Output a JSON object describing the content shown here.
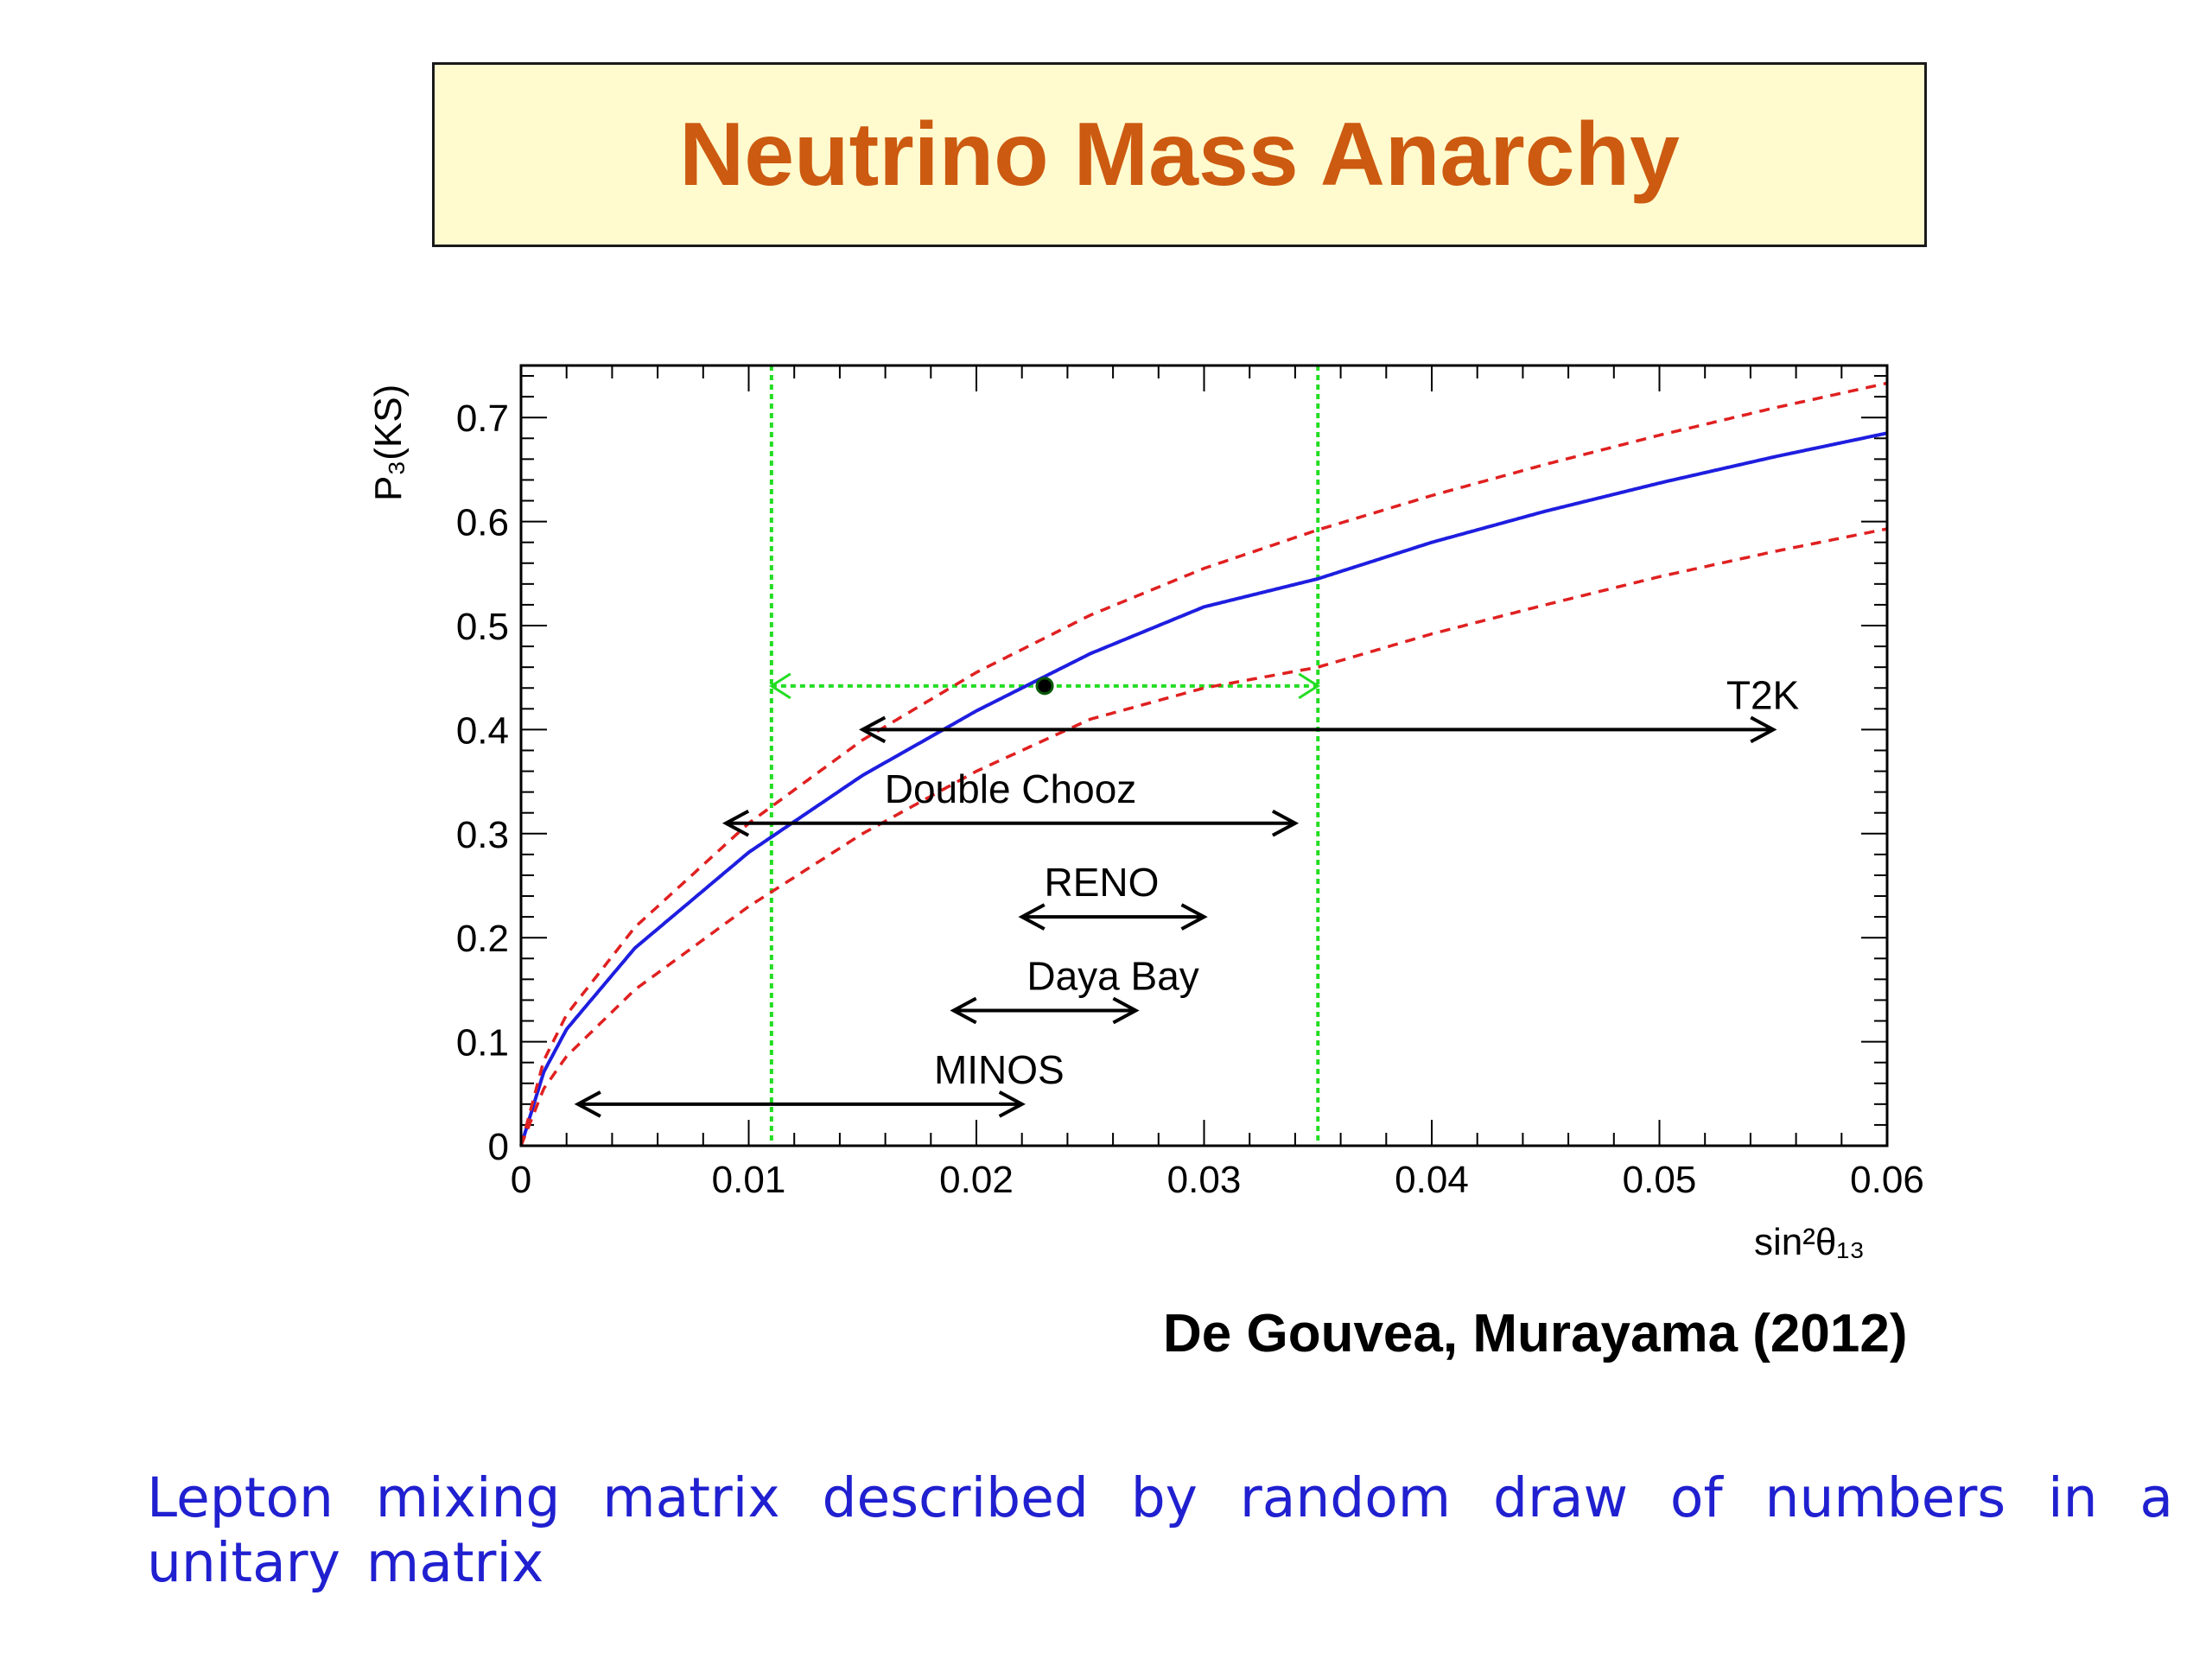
{
  "slide": {
    "title": "Neutrino Mass Anarchy",
    "citation": "De Gouvea, Murayama (2012)",
    "caption": "Lepton mixing matrix described by random draw of numbers in a unitary matrix"
  },
  "colors": {
    "title": "#cc5a10",
    "title_box": "#fffbcf",
    "central_curve": "#1e1ee0",
    "band_curves": "#e02020",
    "measurement": "#22dd22",
    "caption": "#2020d0"
  },
  "chart_data": {
    "type": "line",
    "xlabel": "sin²θ₁₃",
    "ylabel": "P₃(KS)",
    "xlim": [
      0,
      0.06
    ],
    "ylim": [
      0,
      0.75
    ],
    "x_ticks": [
      "0",
      "0.01",
      "0.02",
      "0.03",
      "0.04",
      "0.05",
      "0.06"
    ],
    "y_ticks": [
      "0",
      "0.1",
      "0.2",
      "0.3",
      "0.4",
      "0.5",
      "0.6",
      "0.7"
    ],
    "grid": false,
    "series": [
      {
        "style": "solid",
        "color": "#1e1ee0",
        "x": [
          0,
          0.001,
          0.002,
          0.005,
          0.01,
          0.015,
          0.02,
          0.025,
          0.03,
          0.035,
          0.04,
          0.045,
          0.05,
          0.055,
          0.06
        ],
        "y": [
          0,
          0.071,
          0.112,
          0.19,
          0.282,
          0.356,
          0.418,
          0.473,
          0.518,
          0.545,
          0.58,
          0.61,
          0.637,
          0.662,
          0.685
        ]
      },
      {
        "style": "dashed",
        "color": "#e02020",
        "x": [
          0,
          0.001,
          0.002,
          0.005,
          0.01,
          0.015,
          0.02,
          0.025,
          0.03,
          0.035,
          0.04,
          0.045,
          0.05,
          0.055,
          0.06
        ],
        "y": [
          0,
          0.082,
          0.126,
          0.21,
          0.31,
          0.39,
          0.455,
          0.51,
          0.555,
          0.592,
          0.625,
          0.655,
          0.683,
          0.709,
          0.733
        ]
      },
      {
        "style": "dashed",
        "color": "#e02020",
        "x": [
          0,
          0.001,
          0.002,
          0.005,
          0.01,
          0.015,
          0.02,
          0.025,
          0.03,
          0.035,
          0.04,
          0.045,
          0.05,
          0.055,
          0.06
        ],
        "y": [
          0,
          0.055,
          0.086,
          0.15,
          0.23,
          0.3,
          0.36,
          0.41,
          0.44,
          0.46,
          0.492,
          0.52,
          0.547,
          0.571,
          0.593
        ]
      }
    ],
    "measurement": {
      "x": 0.023,
      "y": 0.442,
      "x_range": [
        0.011,
        0.035
      ],
      "color": "#22dd22"
    },
    "experiments": [
      {
        "label": "T2K",
        "x_range": [
          0.015,
          0.055
        ],
        "y": 0.4
      },
      {
        "label": "Double Chooz",
        "x_range": [
          0.009,
          0.034
        ],
        "y": 0.31
      },
      {
        "label": "RENO",
        "x_range": [
          0.022,
          0.03
        ],
        "y": 0.22
      },
      {
        "label": "Daya Bay",
        "x_range": [
          0.019,
          0.027
        ],
        "y": 0.13
      },
      {
        "label": "MINOS",
        "x_range": [
          0.0025,
          0.022
        ],
        "y": 0.04
      }
    ]
  }
}
